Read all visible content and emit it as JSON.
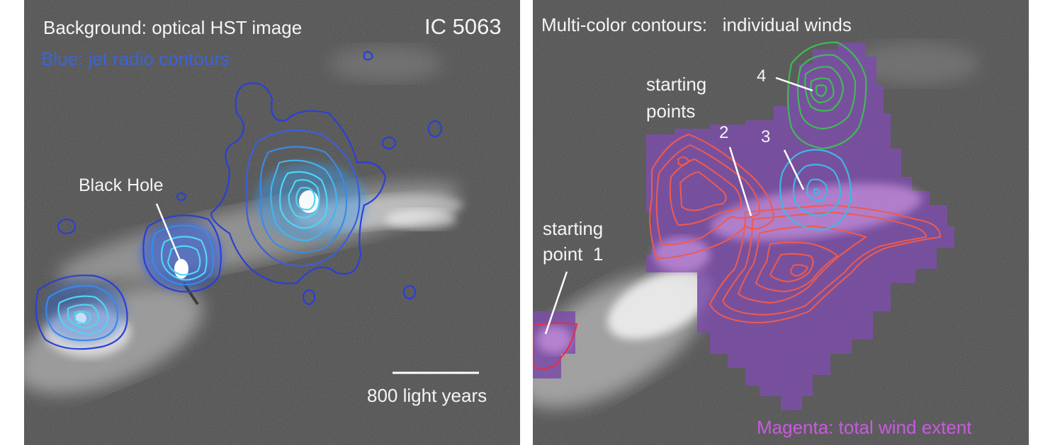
{
  "left_panel": {
    "background_label": "Background: optical HST image",
    "object_name": "IC 5063",
    "jet_label": "Blue: jet radio contours",
    "black_hole_label": "Black Hole",
    "scale_label": "800 light years"
  },
  "right_panel": {
    "contours_label": "Multi-color contours:   individual winds",
    "starting_points_label_1": "starting",
    "starting_points_label_2": "points",
    "starting_point_1_label_1": "starting",
    "starting_point_1_label_2": "point  1",
    "wind_2_label": "2",
    "wind_3_label": "3",
    "wind_4_label": "4",
    "magenta_label": "Magenta: total wind extent"
  },
  "colors": {
    "background": "#4a4a4a",
    "jet_contour_dark": "#2a3fd8",
    "jet_contour_light": "#4fd6f2",
    "wind_red": "#ef5a4e",
    "wind_cyan": "#3fb6e8",
    "wind_green": "#3fba55",
    "wind_magenta_start": "#e0304f",
    "wind_extent": "#7b4ea6",
    "label_blue": "#3b63d8",
    "label_magenta": "#c85ae0",
    "label_white": "#f4f4f4"
  }
}
